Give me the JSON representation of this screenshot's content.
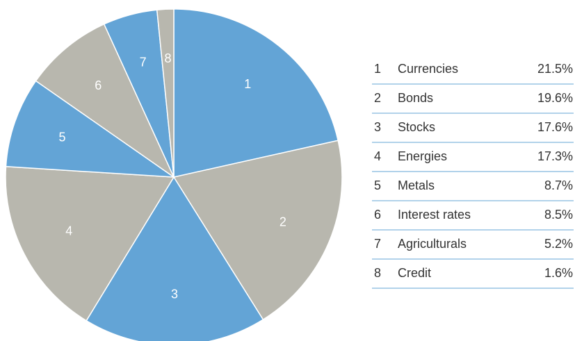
{
  "chart_data": {
    "type": "pie",
    "ids": [
      "1",
      "2",
      "3",
      "4",
      "5",
      "6",
      "7",
      "8"
    ],
    "categories": [
      "Currencies",
      "Bonds",
      "Stocks",
      "Energies",
      "Metals",
      "Interest rates",
      "Agriculturals",
      "Credit"
    ],
    "values": [
      21.5,
      19.6,
      17.6,
      17.3,
      8.7,
      8.5,
      5.2,
      1.6
    ],
    "value_labels": [
      "21.5%",
      "19.6%",
      "17.6%",
      "17.3%",
      "8.7%",
      "8.5%",
      "5.2%",
      "1.6%"
    ],
    "colors": [
      "#63a4d6",
      "#b8b7ae",
      "#63a4d6",
      "#b8b7ae",
      "#63a4d6",
      "#b8b7ae",
      "#63a4d6",
      "#b8b7ae"
    ]
  }
}
